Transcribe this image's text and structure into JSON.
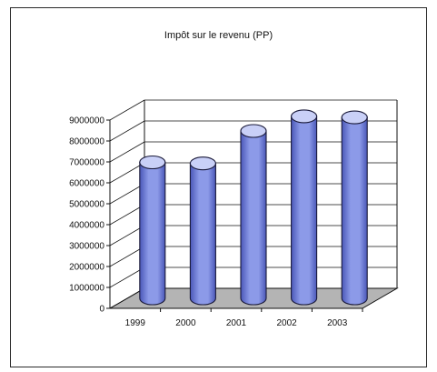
{
  "chart_data": {
    "type": "bar",
    "style": "3d-cylinder",
    "title": "Impôt sur le revenu (PP)",
    "categories": [
      "1999",
      "2000",
      "2001",
      "2002",
      "2003"
    ],
    "series": [
      {
        "values": [
          6500000,
          6450000,
          8000000,
          8700000,
          8650000
        ]
      }
    ],
    "xlabel": "",
    "ylabel": "",
    "ylim": [
      0,
      9000000
    ],
    "yticks": [
      "9000000",
      "8000000",
      "7000000",
      "6000000",
      "5000000",
      "4000000",
      "3000000",
      "2000000",
      "1000000",
      "0"
    ],
    "grid": true,
    "legend": "none",
    "colors": {
      "bar": "#8c9ae8",
      "bar_dark": "#4a57b8",
      "bar_top": "#c9d0f7",
      "floor": "#b4b4b4",
      "axis": "#111111"
    }
  }
}
